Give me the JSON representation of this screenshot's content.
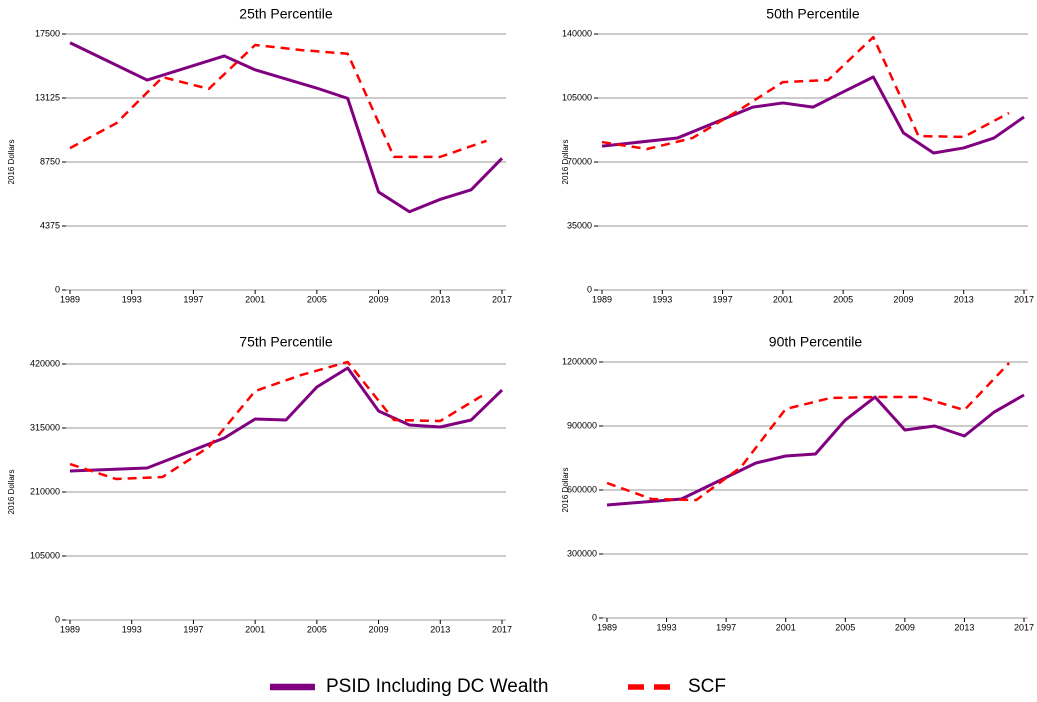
{
  "chart_data": [
    {
      "type": "line",
      "title": "25th Percentile",
      "y_label": "2016 Dollars",
      "xlim": [
        1989,
        2017
      ],
      "xticks": [
        1989,
        1993,
        1997,
        2001,
        2005,
        2009,
        2013,
        2017
      ],
      "ylim": [
        0,
        17500
      ],
      "yticks": [
        0,
        4375,
        8750,
        13125,
        17500
      ],
      "grid": true,
      "series": [
        {
          "name": "PSID Including DC Wealth",
          "color": "#800080",
          "style": "solid",
          "x": [
            1989,
            1994,
            1999,
            2001,
            2005,
            2007,
            2009,
            2011,
            2013,
            2015,
            2017
          ],
          "values": [
            16900,
            14350,
            16000,
            15050,
            13800,
            13100,
            6700,
            5350,
            6200,
            6850,
            9000
          ]
        },
        {
          "name": "SCF",
          "color": "#ff0000",
          "style": "dashed",
          "x": [
            1989,
            1992,
            1995,
            1998,
            2001,
            2004,
            2007,
            2010,
            2013,
            2016
          ],
          "values": [
            9700,
            11400,
            14550,
            13750,
            16750,
            16400,
            16150,
            9100,
            9100,
            10200
          ]
        }
      ]
    },
    {
      "type": "line",
      "title": "50th Percentile",
      "y_label": "2016 Dollars",
      "xlim": [
        1989,
        2017
      ],
      "xticks": [
        1989,
        1993,
        1997,
        2001,
        2005,
        2009,
        2013,
        2017
      ],
      "ylim": [
        0,
        140000
      ],
      "yticks": [
        0,
        35000,
        70000,
        105000,
        140000
      ],
      "grid": true,
      "series": [
        {
          "name": "PSID Including DC Wealth",
          "color": "#800080",
          "style": "solid",
          "x": [
            1989,
            1994,
            1999,
            2001,
            2003,
            2005,
            2007,
            2009,
            2011,
            2013,
            2015,
            2017
          ],
          "values": [
            78700,
            83100,
            100000,
            102300,
            100000,
            108300,
            116500,
            85900,
            74900,
            77700,
            83100,
            94600
          ]
        },
        {
          "name": "SCF",
          "color": "#ff0000",
          "style": "dashed",
          "x": [
            1989,
            1992,
            1995,
            1998,
            2001,
            2004,
            2007,
            2010,
            2013,
            2016
          ],
          "values": [
            80900,
            77100,
            83100,
            97900,
            113700,
            114800,
            138300,
            84200,
            83700,
            96800
          ]
        }
      ]
    },
    {
      "type": "line",
      "title": "75th Percentile",
      "y_label": "2016 Dollars",
      "xlim": [
        1989,
        2017
      ],
      "xticks": [
        1989,
        1993,
        1997,
        2001,
        2005,
        2009,
        2013,
        2017
      ],
      "ylim": [
        0,
        420000
      ],
      "yticks": [
        0,
        105000,
        210000,
        315000,
        420000
      ],
      "grid": true,
      "series": [
        {
          "name": "PSID Including DC Wealth",
          "color": "#800080",
          "style": "solid",
          "x": [
            1989,
            1994,
            1999,
            2001,
            2003,
            2005,
            2007,
            2009,
            2011,
            2013,
            2015,
            2017
          ],
          "values": [
            244500,
            249400,
            298600,
            329800,
            328100,
            382300,
            413400,
            342900,
            319900,
            316600,
            328100,
            377300
          ]
        },
        {
          "name": "SCF",
          "color": "#ff0000",
          "style": "dashed",
          "x": [
            1989,
            1992,
            1995,
            1998,
            2001,
            2004,
            2007,
            2010,
            2013,
            2016
          ],
          "values": [
            255900,
            231300,
            234600,
            283800,
            375700,
            402000,
            423300,
            328100,
            326500,
            372400
          ]
        }
      ]
    },
    {
      "type": "line",
      "title": "90th Percentile",
      "y_label": "2016 Dollars",
      "xlim": [
        1989,
        2017
      ],
      "xticks": [
        1989,
        1993,
        1997,
        2001,
        2005,
        2009,
        2013,
        2017
      ],
      "ylim": [
        0,
        1200000
      ],
      "yticks": [
        0,
        300000,
        600000,
        900000,
        1200000
      ],
      "grid": true,
      "series": [
        {
          "name": "PSID Including DC Wealth",
          "color": "#800080",
          "style": "solid",
          "x": [
            1989,
            1994,
            1999,
            2001,
            2003,
            2005,
            2007,
            2009,
            2011,
            2013,
            2015,
            2017
          ],
          "values": [
            529700,
            557800,
            726600,
            759400,
            768800,
            928100,
            1035900,
            881300,
            900000,
            853100,
            965600,
            1045300
          ]
        },
        {
          "name": "SCF",
          "color": "#ff0000",
          "style": "dashed",
          "x": [
            1989,
            1992,
            1995,
            1998,
            2001,
            2004,
            2007,
            2010,
            2013,
            2016
          ],
          "values": [
            632800,
            557800,
            553100,
            707800,
            979700,
            1031300,
            1035900,
            1035900,
            975000,
            1195300
          ]
        }
      ]
    }
  ]
}
